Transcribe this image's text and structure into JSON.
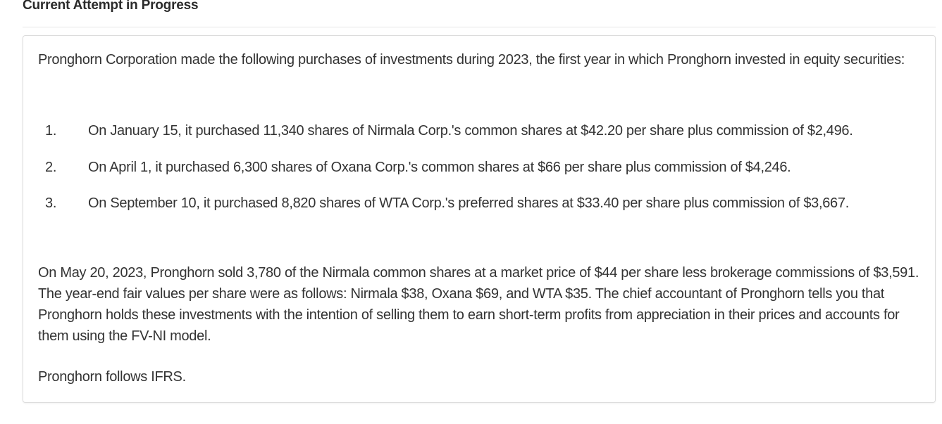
{
  "header": {
    "title": "Current Attempt in Progress"
  },
  "problem": {
    "intro": "Pronghorn Corporation made the following purchases of investments during 2023, the first year in which Pronghorn invested in equity securities:",
    "purchases": [
      {
        "number": "1.",
        "text": "On January 15, it purchased 11,340 shares of Nirmala Corp.'s common shares at $42.20 per share plus commission of $2,496."
      },
      {
        "number": "2.",
        "text": "On April 1, it purchased 6,300 shares of Oxana Corp.'s common shares at $66 per share plus commission of $4,246."
      },
      {
        "number": "3.",
        "text": "On September 10, it purchased 8,820 shares of WTA Corp.'s preferred shares at $33.40 per share plus commission of $3,667."
      }
    ],
    "details": "On May 20, 2023, Pronghorn sold 3,780 of the Nirmala common shares at a market price of $44 per share less brokerage commissions of $3,591. The year-end fair values per share were as follows: Nirmala $38, Oxana $69, and WTA $35. The chief accountant of Pronghorn tells you that Pronghorn holds these investments with the intention of selling them to earn short-term profits from appreciation in their prices and accounts for them using the FV-NI model.",
    "standard": "Pronghorn follows IFRS."
  }
}
